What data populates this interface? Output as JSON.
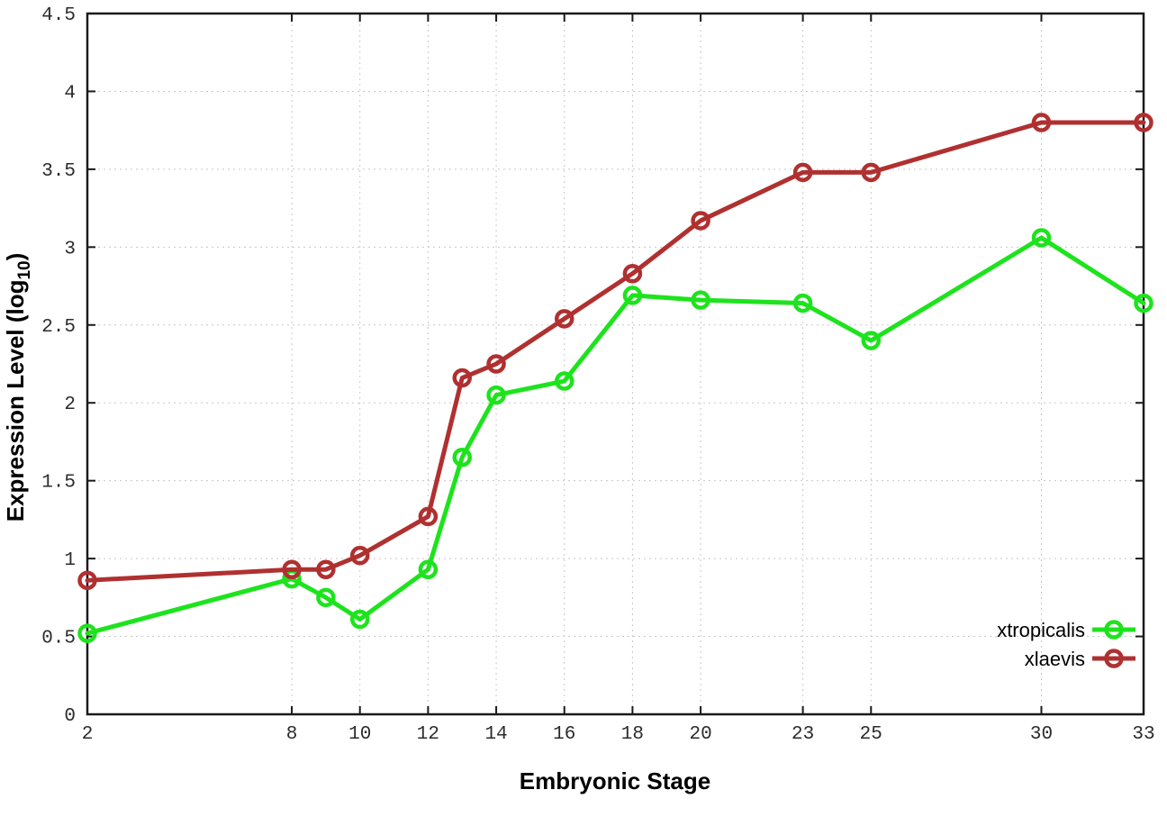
{
  "chart_data": {
    "type": "line",
    "title": "",
    "xlabel": "Embryonic Stage",
    "ylabel_prefix": "Expression Level (log",
    "ylabel_sub": "10",
    "ylabel_suffix": ")",
    "x": [
      2,
      8,
      9,
      10,
      12,
      13,
      14,
      16,
      18,
      20,
      23,
      25,
      30,
      33
    ],
    "x_tick_labels": [
      2,
      8,
      10,
      12,
      14,
      16,
      18,
      20,
      23,
      25,
      30,
      33
    ],
    "y_ticks": [
      0,
      0.5,
      1,
      1.5,
      2,
      2.5,
      3,
      3.5,
      4,
      4.5
    ],
    "xlim": [
      2,
      33
    ],
    "ylim": [
      0,
      4.5
    ],
    "grid": "dotted",
    "grid_color": "#c8c8c8",
    "border_color": "#1a1a1a",
    "legend_position": "bottom-right-inside",
    "marker": "open-circle",
    "series": [
      {
        "name": "xtropicalis",
        "color": "#1de31d",
        "values": [
          0.52,
          0.87,
          0.75,
          0.61,
          0.93,
          1.65,
          2.05,
          2.14,
          2.69,
          2.66,
          2.64,
          2.4,
          3.06,
          2.64
        ]
      },
      {
        "name": "xlaevis",
        "color": "#b03030",
        "values": [
          0.86,
          0.93,
          0.93,
          1.02,
          1.27,
          2.16,
          2.25,
          2.54,
          2.83,
          3.17,
          3.48,
          3.48,
          3.8,
          3.8
        ]
      }
    ]
  }
}
